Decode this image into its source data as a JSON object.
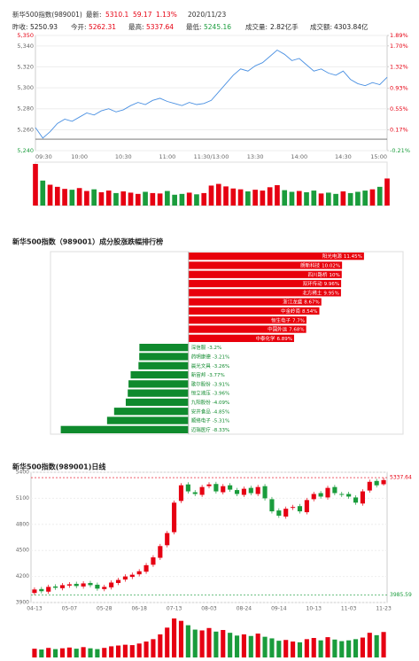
{
  "header": {
    "name": "新华500指数(989001)",
    "latest_label": "最新:",
    "latest": 5310.1,
    "change": 59.17,
    "change_pct": "1.13%",
    "date": "2020/11/23",
    "up_color": "#e60012",
    "down_color": "#1a9c3c",
    "fields": [
      {
        "label": "昨收:",
        "value": 5250.93,
        "color": "#222222"
      },
      {
        "label": "今开:",
        "value": 5262.31,
        "color": "#e60012"
      },
      {
        "label": "最高:",
        "value": 5337.64,
        "color": "#e60012"
      },
      {
        "label": "最低:",
        "value": 5245.16,
        "color": "#1a9c3c"
      },
      {
        "label": "成交量:",
        "value": "2.82亿手",
        "color": "#222222"
      },
      {
        "label": "成交额:",
        "value": "4303.84亿",
        "color": "#222222"
      }
    ]
  },
  "chart_data": [
    {
      "type": "line",
      "color": "#4a90e2",
      "up_color": "#e60012",
      "down_color": "#1a9c3c",
      "x": [
        "09:30",
        null,
        null,
        null,
        null,
        null,
        "10:00",
        null,
        null,
        null,
        null,
        null,
        "10:30",
        null,
        null,
        null,
        null,
        null,
        "11:00",
        null,
        null,
        null,
        null,
        null,
        "11:30/13:00",
        null,
        null,
        null,
        null,
        null,
        "13:30",
        null,
        null,
        null,
        null,
        null,
        "14:00",
        null,
        null,
        null,
        null,
        null,
        "14:30",
        null,
        null,
        null,
        null,
        null,
        "15:00"
      ],
      "values": [
        5262,
        5252,
        5258,
        5266,
        5270,
        5268,
        5272,
        5276,
        5274,
        5278,
        5280,
        5277,
        5279,
        5283,
        5286,
        5284,
        5288,
        5290,
        5287,
        5285,
        5283,
        5286,
        5284,
        5285,
        5288,
        5296,
        5304,
        5312,
        5318,
        5316,
        5321,
        5324,
        5330,
        5336,
        5332,
        5326,
        5328,
        5322,
        5316,
        5318,
        5314,
        5312,
        5316,
        5308,
        5304,
        5302,
        5305,
        5303,
        5310.1
      ],
      "volume": [
        10,
        6,
        5,
        4.5,
        4,
        3.8,
        4.2,
        3.5,
        3.9,
        3.2,
        3.6,
        3,
        3.4,
        3.1,
        2.8,
        3.3,
        3,
        2.9,
        3.5,
        2.6,
        2.8,
        3.1,
        2.7,
        3,
        4.8,
        5.2,
        4.6,
        4.1,
        3.9,
        3.4,
        3.8,
        3.6,
        4.4,
        4.9,
        3.7,
        3.3,
        3.5,
        3.2,
        3.6,
        2.9,
        3.1,
        2.8,
        3.4,
        3,
        3.3,
        3.6,
        3.9,
        4.5,
        6.5
      ],
      "ylim": [
        5240,
        5350
      ],
      "yticks": [
        {
          "value": 5240,
          "label": "5,240"
        },
        {
          "value": 5260,
          "label": "5,260"
        },
        {
          "value": 5280,
          "label": "5,280"
        },
        {
          "value": 5300,
          "label": "5,300"
        },
        {
          "value": 5320,
          "label": "5,320"
        },
        {
          "value": 5340,
          "label": "5,340"
        },
        {
          "value": 5350,
          "label": "5,350"
        }
      ],
      "y2lim": [
        -0.21,
        1.89
      ],
      "y2ticks": [
        {
          "value": -0.21,
          "label": "-0.21%"
        },
        {
          "value": 0.17,
          "label": "0.17%"
        },
        {
          "value": 0.55,
          "label": "0.55%"
        },
        {
          "value": 0.93,
          "label": "0.93%"
        },
        {
          "value": 1.32,
          "label": "1.32%"
        },
        {
          "value": 1.7,
          "label": "1.70%"
        },
        {
          "value": 1.89,
          "label": "1.89%"
        }
      ]
    },
    {
      "type": "bar",
      "orientation": "horizontal",
      "title": "新华500指数（989001）成分股涨跌幅排行榜",
      "up_color": "#e8000b",
      "down_color": "#0f8a2d",
      "categories": [
        "阳光电源",
        "朗新科技",
        "四川路桥",
        "双环传动",
        "北方稀土",
        "浙江龙盛",
        "中金岭南",
        "恒生电子",
        "中国外运",
        "中泰化学",
        "深信服",
        "药明康德",
        "晨光文具",
        "新宙邦",
        "歌尔股份",
        "恒立液压",
        "九阳股份",
        "安井食品",
        "顺络电子",
        "迈瑞医疗"
      ],
      "values": [
        11.45,
        10.02,
        10,
        9.96,
        9.95,
        8.67,
        8.54,
        7.7,
        7.68,
        6.89,
        -3.2,
        -3.21,
        -3.26,
        -3.77,
        -3.91,
        -3.96,
        -4.09,
        -4.85,
        -5.31,
        -8.33
      ],
      "value_labels": [
        "11.45%",
        "10.02%",
        "10%",
        "9.96%",
        "9.95%",
        "8.67%",
        "8.54%",
        "7.7%",
        "7.68%",
        "6.89%",
        "-3.2%",
        "-3.21%",
        "-3.26%",
        "-3.77%",
        "-3.91%",
        "-3.96%",
        "-4.09%",
        "-4.85%",
        "-5.31%",
        "-8.33%"
      ],
      "xlim": [
        -9,
        14
      ]
    },
    {
      "type": "candlestick",
      "title": "新华500指数(989001)日线",
      "up_color": "#e60012",
      "down_color": "#1a9c3c",
      "x": [
        "04-13",
        null,
        null,
        null,
        null,
        "05-07",
        null,
        null,
        null,
        null,
        "05-28",
        null,
        null,
        null,
        null,
        "06-18",
        null,
        null,
        null,
        null,
        "07-13",
        null,
        null,
        null,
        null,
        "08-03",
        null,
        null,
        null,
        null,
        "08-24",
        null,
        null,
        null,
        null,
        "09-14",
        null,
        null,
        null,
        null,
        "10-13",
        null,
        null,
        null,
        null,
        "11-03",
        null,
        null,
        null,
        null,
        "11-23"
      ],
      "open": [
        4010,
        4055,
        4025,
        4085,
        4065,
        4095,
        4115,
        4085,
        4125,
        4105,
        4055,
        4075,
        4125,
        4165,
        4195,
        4225,
        4255,
        4335,
        4415,
        4560,
        4710,
        5070,
        5260,
        5170,
        5140,
        5240,
        5265,
        5170,
        5250,
        5195,
        5140,
        5220,
        5150,
        5240,
        5090,
        4960,
        4890,
        4990,
        5010,
        4940,
        5090,
        5160,
        5110,
        5230,
        5150,
        5150,
        5110,
        5040,
        5190,
        5300,
        5262.31
      ],
      "high": [
        4075,
        4080,
        4105,
        4110,
        4125,
        4135,
        4140,
        4145,
        4150,
        4130,
        4105,
        4155,
        4185,
        4225,
        4245,
        4285,
        4355,
        4445,
        4575,
        4725,
        5075,
        5275,
        5285,
        5195,
        5255,
        5285,
        5290,
        5265,
        5275,
        5220,
        5235,
        5245,
        5255,
        5265,
        5115,
        4985,
        5005,
        5025,
        5035,
        5105,
        5175,
        5185,
        5245,
        5255,
        5175,
        5175,
        5135,
        5205,
        5315,
        5325,
        5337.64
      ],
      "low": [
        3985.59,
        4005,
        4000,
        4045,
        4040,
        4070,
        4065,
        4060,
        4075,
        4035,
        4030,
        4050,
        4100,
        4140,
        4170,
        4200,
        4230,
        4310,
        4390,
        4535,
        4685,
        5045,
        5155,
        5125,
        5115,
        5215,
        5155,
        5145,
        5175,
        5125,
        5115,
        5135,
        5125,
        5075,
        4925,
        4875,
        4865,
        4965,
        4925,
        4915,
        5065,
        5095,
        5085,
        5135,
        5115,
        5095,
        5025,
        5015,
        5165,
        5225,
        5245.16
      ],
      "close": [
        4050,
        4030,
        4080,
        4070,
        4100,
        4110,
        4090,
        4120,
        4100,
        4060,
        4080,
        4130,
        4160,
        4200,
        4220,
        4260,
        4330,
        4420,
        4550,
        4700,
        5050,
        5250,
        5180,
        5150,
        5230,
        5260,
        5180,
        5240,
        5200,
        5150,
        5210,
        5160,
        5230,
        5100,
        4950,
        4900,
        4980,
        5000,
        4950,
        5080,
        5150,
        5120,
        5220,
        5160,
        5140,
        5120,
        5050,
        5180,
        5290,
        5250,
        5310.1
      ],
      "volume": [
        2.2,
        2,
        2.4,
        2.1,
        2.3,
        2.5,
        2.2,
        2.6,
        2.3,
        2.1,
        2.4,
        2.8,
        3,
        3.2,
        3.1,
        3.5,
        4,
        4.6,
        5.8,
        7.5,
        9.8,
        9.2,
        8.1,
        7,
        6.8,
        7.4,
        6.5,
        6.9,
        6.2,
        5.5,
        5.8,
        5.4,
        6,
        5.2,
        4.8,
        4.2,
        4.4,
        4,
        3.8,
        4.6,
        4.9,
        4.3,
        5.1,
        4.5,
        4.1,
        4.3,
        4.6,
        5,
        6.2,
        5.6,
        6.4
      ],
      "ylim": [
        3900,
        5400
      ],
      "yticks": [
        3900,
        4200,
        4500,
        4800,
        5100,
        5400
      ]
    }
  ]
}
